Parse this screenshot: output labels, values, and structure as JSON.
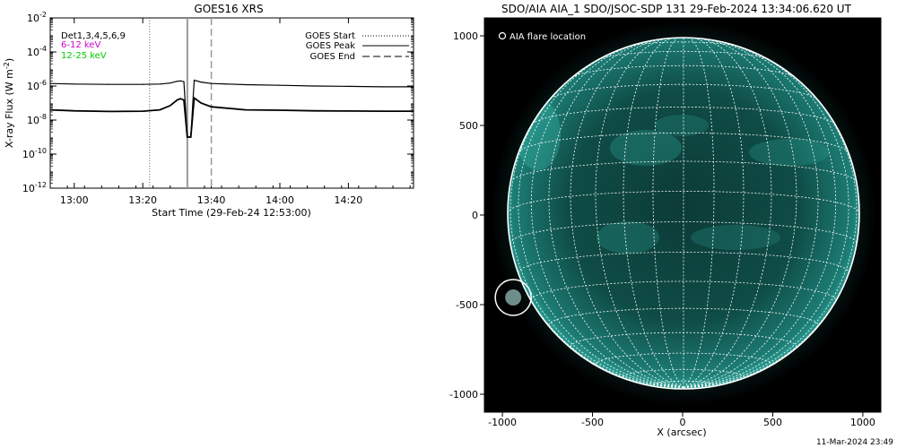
{
  "left_panel": {
    "title": "GOES16 XRS",
    "xlabel": "Start Time (29-Feb-24 12:53:00)",
    "ylabel": "X-ray Flux (W m",
    "ylabel_sup": "-2",
    "ylabel_close": ")",
    "det_label": "Det1,3,4,5,6,9",
    "band_labels": [
      {
        "text": "6-12 keV",
        "color": "#cc00cc"
      },
      {
        "text": "12-25 keV",
        "color": "#00cc00"
      }
    ],
    "legend": [
      {
        "text": "GOES Start",
        "style": "dotted"
      },
      {
        "text": "GOES Peak",
        "style": "solid"
      },
      {
        "text": "GOES End",
        "style": "dashed"
      }
    ]
  },
  "right_panel": {
    "title": "SDO/AIA AIA_1 SDO/JSOC-SDP 131 29-Feb-2024 13:34:06.620 UT",
    "legend_label": "AIA flare location",
    "xlabel": "X (arcsec)",
    "xticks": [
      "-1000",
      "-500",
      "0",
      "500",
      "1000"
    ],
    "yticks": [
      "1000",
      "500",
      "0",
      "-500",
      "-1000"
    ],
    "disk_color": "#1c8e84",
    "flare_location": {
      "x": -940,
      "y": -460
    }
  },
  "footer": {
    "timestamp": "11-Mar-2024 23:49"
  },
  "chart_data": [
    {
      "type": "line",
      "title": "GOES16 XRS",
      "xlabel": "Start Time (29-Feb-24 12:53:00)",
      "ylabel": "X-ray Flux (W m^-2)",
      "yscale": "log",
      "ylim": [
        1e-12,
        0.01
      ],
      "yticks": [
        "10^-2",
        "10^-4",
        "10^-6",
        "10^-8",
        "10^-10",
        "10^-12"
      ],
      "xticks": [
        "13:00",
        "13:20",
        "13:40",
        "14:00",
        "14:20"
      ],
      "xlim": [
        "12:53",
        "14:39"
      ],
      "events": {
        "start": "13:22",
        "peak": "13:33",
        "end": "13:40"
      },
      "series": [
        {
          "name": "GOES long channel",
          "color": "#000000",
          "x": [
            "12:53",
            "13:00",
            "13:10",
            "13:20",
            "13:25",
            "13:28",
            "13:30",
            "13:31",
            "13:32",
            "13:33",
            "13:34",
            "13:35",
            "13:37",
            "13:40",
            "13:50",
            "14:00",
            "14:10",
            "14:20",
            "14:30",
            "14:39"
          ],
          "y": [
            1.4e-06,
            1.3e-06,
            1.25e-06,
            1.25e-06,
            1.3e-06,
            1.5e-06,
            1.9e-06,
            2e-06,
            1.8e-06,
            1e-09,
            1e-09,
            2.2e-06,
            1.7e-06,
            1.4e-06,
            1.2e-06,
            1.1e-06,
            1e-06,
            9.5e-07,
            9e-07,
            9e-07
          ]
        },
        {
          "name": "GOES short channel",
          "color": "#000000",
          "x": [
            "12:53",
            "13:00",
            "13:10",
            "13:20",
            "13:25",
            "13:28",
            "13:30",
            "13:31",
            "13:32",
            "13:33",
            "13:34",
            "13:35",
            "13:37",
            "13:40",
            "13:50",
            "14:00",
            "14:10",
            "14:20",
            "14:30",
            "14:39"
          ],
          "y": [
            4e-08,
            3.5e-08,
            3.2e-08,
            3.3e-08,
            4e-08,
            7e-08,
            1.5e-07,
            1.8e-07,
            1.5e-07,
            1e-09,
            1e-09,
            2e-07,
            1e-07,
            6e-08,
            4e-08,
            3.8e-08,
            3.5e-08,
            3.4e-08,
            3.3e-08,
            3.3e-08
          ]
        }
      ]
    },
    {
      "type": "scatter",
      "title": "SDO/AIA AIA_1 SDO/JSOC-SDP 131 29-Feb-2024 13:34:06.620 UT",
      "xlabel": "X (arcsec)",
      "xlim": [
        -1100,
        1100
      ],
      "ylim": [
        -1100,
        1100
      ],
      "xticks": [
        -1000,
        -500,
        0,
        500,
        1000
      ],
      "yticks": [
        1000,
        500,
        0,
        -500,
        -1000
      ],
      "grid": "heliographic 10° lines",
      "series": [
        {
          "name": "AIA flare location",
          "x": [
            -940
          ],
          "y": [
            -460
          ]
        }
      ]
    }
  ]
}
